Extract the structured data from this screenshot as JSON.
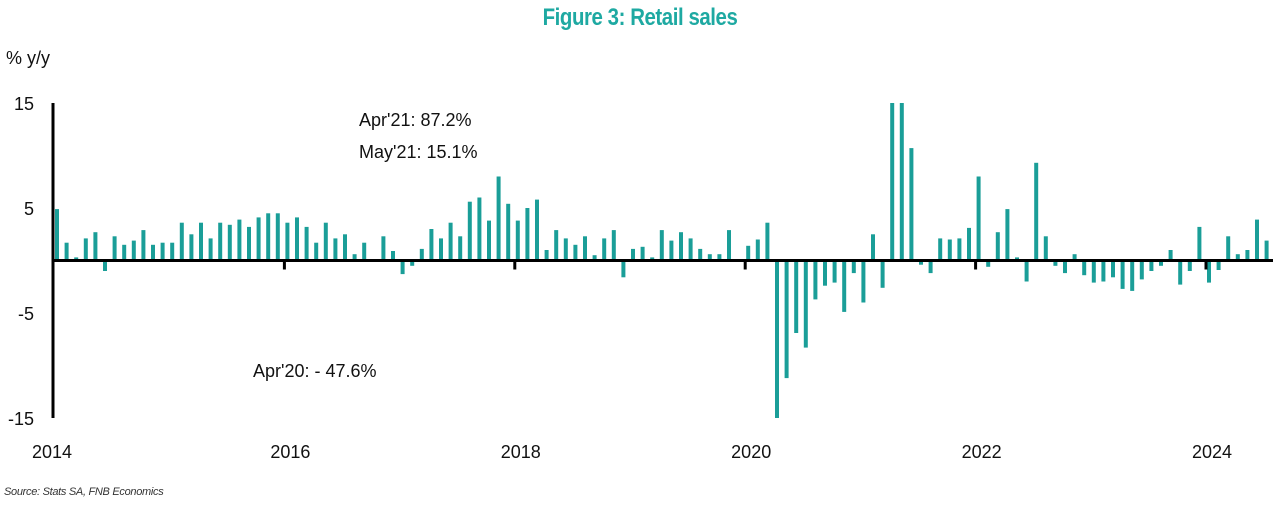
{
  "chart_data": {
    "type": "bar",
    "title": "Figure 3: Retail sales",
    "xlabel": "",
    "ylabel": "% y/y",
    "ylim": [
      -15,
      15
    ],
    "yticks": [
      "15",
      "5",
      "-5",
      "-15"
    ],
    "ytick_values": [
      15,
      5,
      -5,
      -15
    ],
    "xticks": [
      "2014",
      "2016",
      "2018",
      "2020",
      "2022",
      "2024"
    ],
    "start": "Jan 2014",
    "end": "Jul 2024",
    "frequency": "monthly",
    "bar_color": "#1a9e98",
    "grid": false,
    "legend": "none",
    "annotations": [
      {
        "text": "Apr'21: 87.2%"
      },
      {
        "text": "May'21: 15.1%"
      },
      {
        "text": "Apr'20:    - 47.6%"
      }
    ],
    "series": [
      {
        "name": "Retail sales % y/y",
        "values": [
          4.9,
          1.7,
          0.3,
          2.1,
          2.7,
          -1.0,
          2.3,
          1.5,
          1.9,
          2.9,
          1.5,
          1.7,
          1.7,
          3.6,
          2.5,
          3.6,
          2.1,
          3.6,
          3.4,
          3.9,
          3.2,
          4.1,
          4.5,
          4.5,
          3.6,
          4.1,
          3.2,
          1.7,
          3.6,
          2.1,
          2.5,
          0.6,
          1.7,
          0.1,
          2.3,
          0.9,
          -1.3,
          -0.5,
          1.1,
          3.0,
          2.1,
          3.6,
          2.3,
          5.6,
          6.0,
          3.8,
          8.0,
          5.4,
          3.8,
          5.0,
          5.8,
          1.0,
          2.9,
          2.1,
          1.5,
          2.3,
          0.5,
          2.1,
          2.9,
          -1.6,
          1.1,
          1.3,
          0.3,
          2.9,
          1.9,
          2.7,
          2.1,
          1.1,
          0.6,
          0.6,
          2.9,
          -0.1,
          1.4,
          2.0,
          3.6,
          -47.6,
          -11.2,
          -6.9,
          -8.3,
          -3.7,
          -2.4,
          -2.1,
          -4.9,
          -1.2,
          -4.0,
          2.5,
          -2.6,
          87.2,
          15.1,
          10.7,
          -0.4,
          -1.2,
          2.1,
          2.0,
          2.1,
          3.1,
          8.0,
          -0.6,
          2.7,
          4.9,
          0.3,
          -2.0,
          9.3,
          2.3,
          -0.5,
          -1.2,
          0.6,
          -1.4,
          -2.1,
          -2.0,
          -1.6,
          -2.7,
          -2.9,
          -1.8,
          -1.0,
          -0.5,
          1.0,
          -2.3,
          -1.0,
          3.2,
          -2.1,
          -0.9,
          2.3,
          0.6,
          1.0,
          3.9,
          1.9
        ]
      }
    ]
  },
  "header": {
    "title": "Figure 3: Retail sales"
  },
  "axis": {
    "y_unit_label": "% y/y"
  },
  "footer": {
    "source": "Source: Stats SA, FNB Economics"
  }
}
